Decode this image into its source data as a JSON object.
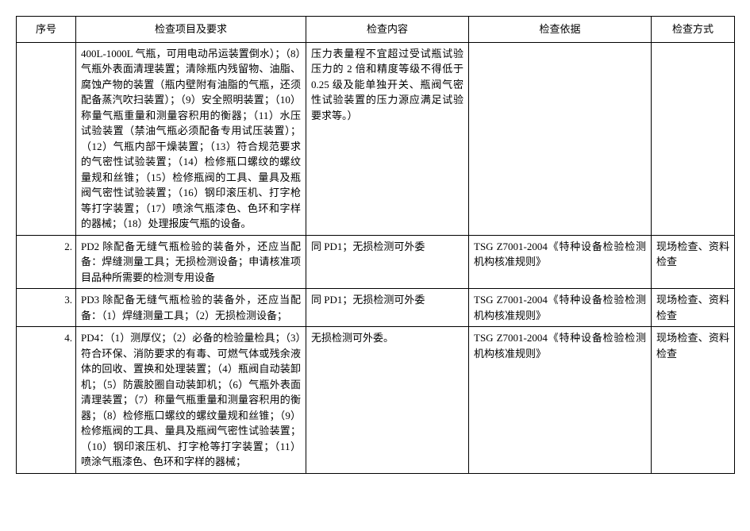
{
  "headers": {
    "seq": "序号",
    "item": "检查项目及要求",
    "content": "检查内容",
    "basis": "检查依据",
    "method": "检查方式"
  },
  "rows": [
    {
      "num": "",
      "item": "400L-1000L 气瓶，可用电动吊运装置倒水）；（8）气瓶外表面清理装置；清除瓶内残留物、油脂、腐蚀产物的装置（瓶内壁附有油脂的气瓶，还须配备蒸汽吹扫装置）；（9）安全照明装置；（10）称量气瓶重量和测量容积用的衡器；（11）水压试验装置（禁油气瓶必须配备专用试压装置）；（12）气瓶内部干燥装置；（13）符合规范要求的气密性试验装置；（14）检修瓶口螺纹的螺纹量规和丝锥；（15）检修瓶阀的工具、量具及瓶阀气密性试验装置；（16）钢印滚压机、打字枪等打字装置；（17）喷涂气瓶漆色、色环和字样的器械；（18）处理报废气瓶的设备。",
      "content": "压力表量程不宜超过受试瓶试验压力的 2 倍和精度等级不得低于 0.25 级及能单独开关、瓶阀气密性试验装置的压力源应满足试验要求等。）",
      "basis": "",
      "method": ""
    },
    {
      "num": "2.",
      "item": "PD2 除配备无缝气瓶检验的装备外，还应当配备：焊缝测量工具；无损检测设备；申请核准项目品种所需要的检测专用设备",
      "content": "同 PD1；无损检测可外委",
      "basis": "TSG Z7001-2004《特种设备检验检测机构核准规则》",
      "method": "现场检查、资料检查"
    },
    {
      "num": "3.",
      "item": "PD3 除配备无缝气瓶检验的装备外，还应当配备：（1）焊缝测量工具；（2）无损检测设备；",
      "content": "同 PD1；无损检测可外委",
      "basis": "TSG Z7001-2004《特种设备检验检测机构核准规则》",
      "method": "现场检查、资料检查"
    },
    {
      "num": "4.",
      "item": "PD4：（1）测厚仪；（2）必备的检验量检具；（3）符合环保、消防要求的有毒、可燃气体或残余液体的回收、置换和处理装置；（4）瓶阀自动装卸机；（5）防震胶圈自动装卸机；（6）气瓶外表面清理装置；（7）称量气瓶重量和测量容积用的衡器；（8）检修瓶口螺纹的螺纹量规和丝锥；（9）检修瓶阀的工具、量具及瓶阀气密性试验装置；（10）钢印滚压机、打字枪等打字装置；（11）喷涂气瓶漆色、色环和字样的器械；",
      "content": "无损检测可外委。",
      "basis": "TSG Z7001-2004《特种设备检验检测机构核准规则》",
      "method": "现场检查、资料检查"
    }
  ]
}
